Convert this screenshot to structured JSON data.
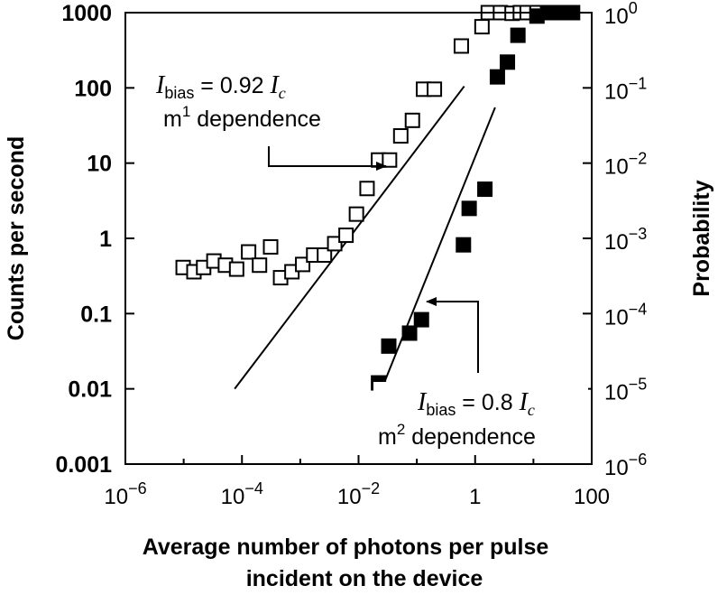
{
  "chart_data": {
    "type": "scatter",
    "x_scale": "log",
    "y_scale": "log",
    "xlim": [
      1e-06,
      100
    ],
    "ylim_left": [
      0.001,
      1000
    ],
    "ylim_right": [
      1e-06,
      1
    ],
    "x_ticks": [
      {
        "value": 1e-06,
        "base": "10",
        "exp": "−6"
      },
      {
        "value": 0.0001,
        "base": "10",
        "exp": "−4"
      },
      {
        "value": 0.01,
        "base": "10",
        "exp": "−2"
      },
      {
        "value": 1,
        "base": "1",
        "exp": ""
      },
      {
        "value": 100,
        "base": "100",
        "exp": ""
      }
    ],
    "y_ticks_left": [
      {
        "value": 1000,
        "label": "1000"
      },
      {
        "value": 100,
        "label": "100"
      },
      {
        "value": 10,
        "label": "10"
      },
      {
        "value": 1,
        "label": "1"
      },
      {
        "value": 0.1,
        "label": "0.1"
      },
      {
        "value": 0.01,
        "label": "0.01"
      },
      {
        "value": 0.001,
        "label": "0.001"
      }
    ],
    "y_ticks_right": [
      {
        "value": 1,
        "base": "10",
        "exp": "0"
      },
      {
        "value": 0.1,
        "base": "10",
        "exp": "−1"
      },
      {
        "value": 0.01,
        "base": "10",
        "exp": "−2"
      },
      {
        "value": 0.001,
        "base": "10",
        "exp": "−3"
      },
      {
        "value": 0.0001,
        "base": "10",
        "exp": "−4"
      },
      {
        "value": 1e-05,
        "base": "10",
        "exp": "−5"
      },
      {
        "value": 1e-06,
        "base": "10",
        "exp": "−6"
      }
    ],
    "xlabel": [
      "Average number of photons per pulse",
      "incident on the device"
    ],
    "ylabel_left": "Counts per second",
    "ylabel_right": "Probability",
    "series": [
      {
        "marker": "open-square",
        "x": [
          9.8e-06,
          1.5e-05,
          2.2e-05,
          3.3e-05,
          5.2e-05,
          8.1e-05,
          0.00013,
          0.0002,
          0.00031,
          0.00046,
          0.00072,
          0.0011,
          0.0017,
          0.0026,
          0.0039,
          0.0061,
          0.0092,
          0.014,
          0.022,
          0.034,
          0.053,
          0.084,
          0.13,
          0.2,
          0.58,
          1.31,
          1.68,
          2.72,
          4.3,
          5.96,
          7.8,
          11.5,
          19,
          28,
          45
        ],
        "y": [
          0.41,
          0.36,
          0.41,
          0.5,
          0.44,
          0.39,
          0.66,
          0.44,
          0.77,
          0.3,
          0.36,
          0.45,
          0.6,
          0.6,
          0.85,
          1.1,
          2.1,
          4.6,
          11,
          11,
          23,
          37,
          96,
          96,
          360,
          650,
          1000,
          1000,
          980,
          1000,
          1000,
          1000,
          1000,
          1000,
          1000
        ]
      },
      {
        "marker": "filled-square",
        "x": [
          0.022,
          0.033,
          0.075,
          0.12,
          0.63,
          0.79,
          1.47,
          2.41,
          3.58,
          5.42,
          11.5,
          17.5,
          28,
          47
        ],
        "y": [
          0.012,
          0.037,
          0.055,
          0.083,
          0.82,
          2.5,
          4.5,
          140,
          220,
          500,
          900,
          1000,
          1000,
          1000
        ]
      }
    ],
    "fit_lines": [
      {
        "name": "m1",
        "x": [
          7.5e-05,
          0.65
        ],
        "y": [
          0.01,
          105
        ]
      },
      {
        "name": "m2",
        "x": [
          0.025,
          2.2
        ],
        "y": [
          0.01,
          55
        ]
      }
    ],
    "annotations": [
      {
        "id": "ann-1",
        "line1": {
          "i": "I",
          "sub": "bias",
          "mid": " = 0.92 ",
          "i2": "I",
          "sub2": "c"
        },
        "line2": {
          "pre": "m",
          "sup": "1",
          "post": " dependence"
        }
      },
      {
        "id": "ann-2",
        "line1": {
          "i": "I",
          "sub": "bias",
          "mid": " = 0.8 ",
          "i2": "I",
          "sub2": "c"
        },
        "line2": {
          "pre": "m",
          "sup": "2",
          "post": " dependence"
        }
      }
    ]
  }
}
